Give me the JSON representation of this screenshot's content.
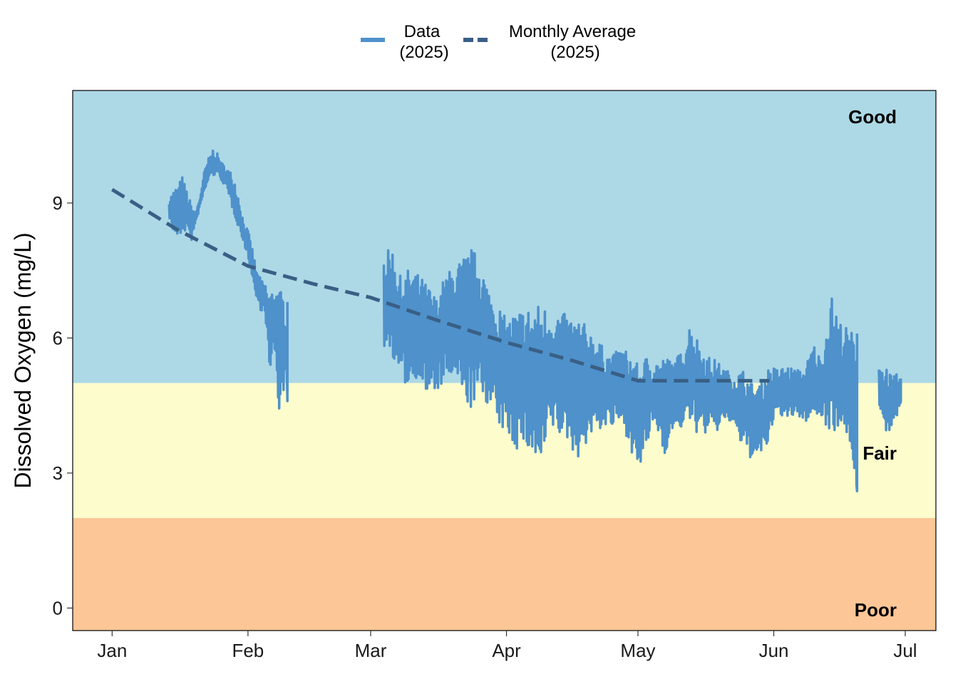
{
  "chart_data": {
    "type": "line",
    "ylabel": "Dissolved Oxygen (mg/L)",
    "xlabel": "",
    "ylim": [
      -0.5,
      11.5
    ],
    "xlim": [
      "2024-12-23",
      "2025-07-08"
    ],
    "y_ticks": [
      0,
      3,
      6,
      9
    ],
    "x_ticks": [
      {
        "date": "2025-01-01",
        "label": "Jan"
      },
      {
        "date": "2025-02-01",
        "label": "Feb"
      },
      {
        "date": "2025-03-01",
        "label": "Mar"
      },
      {
        "date": "2025-04-01",
        "label": "Apr"
      },
      {
        "date": "2025-05-01",
        "label": "May"
      },
      {
        "date": "2025-06-01",
        "label": "Jun"
      },
      {
        "date": "2025-07-01",
        "label": "Jul"
      }
    ],
    "grid": false,
    "legend_position": "top",
    "zones": [
      {
        "label": "Good",
        "from": 5,
        "to": 11.5,
        "color": "#add8e6"
      },
      {
        "label": "Fair",
        "from": 2,
        "to": 5,
        "color": "#fdfccc"
      },
      {
        "label": "Poor",
        "from": -0.5,
        "to": 2,
        "color": "#fcc697"
      }
    ],
    "series": [
      {
        "name": "Data\n(2025)",
        "legend_lines": [
          "Data",
          "(2025)"
        ],
        "color": "#4e91cb",
        "style": "solid",
        "segments": [
          {
            "x": [
              "2025-01-14",
              "2025-01-15",
              "2025-01-16",
              "2025-01-17",
              "2025-01-18",
              "2025-01-19",
              "2025-01-20",
              "2025-01-21",
              "2025-01-22",
              "2025-01-23",
              "2025-01-24",
              "2025-01-25",
              "2025-01-26",
              "2025-01-27",
              "2025-01-28",
              "2025-01-29",
              "2025-01-30",
              "2025-01-31",
              "2025-02-01",
              "2025-02-02",
              "2025-02-03",
              "2025-02-04",
              "2025-02-05",
              "2025-02-06",
              "2025-02-07",
              "2025-02-08",
              "2025-02-09",
              "2025-02-10"
            ],
            "low": [
              8.7,
              8.3,
              8.2,
              8.3,
              8.4,
              8.1,
              8.5,
              8.9,
              9.2,
              9.5,
              9.6,
              9.6,
              9.5,
              9.3,
              9.0,
              8.7,
              8.4,
              8.1,
              7.8,
              7.3,
              6.8,
              6.6,
              6.5,
              5.0,
              5.8,
              4.3,
              4.8,
              4.6
            ],
            "high": [
              9.1,
              9.3,
              9.4,
              9.6,
              9.3,
              9.0,
              8.8,
              9.1,
              9.7,
              10.0,
              10.2,
              10.1,
              9.9,
              9.8,
              9.7,
              9.5,
              9.1,
              8.6,
              8.4,
              8.0,
              7.5,
              7.3,
              7.2,
              7.0,
              7.2,
              7.1,
              7.0,
              6.8
            ]
          },
          {
            "x": [
              "2025-03-04",
              "2025-03-06",
              "2025-03-08",
              "2025-03-10",
              "2025-03-12",
              "2025-03-14",
              "2025-03-16",
              "2025-03-18",
              "2025-03-20",
              "2025-03-22",
              "2025-03-24",
              "2025-03-26",
              "2025-03-28",
              "2025-03-30",
              "2025-04-01",
              "2025-04-03",
              "2025-04-05",
              "2025-04-07",
              "2025-04-09",
              "2025-04-11",
              "2025-04-13",
              "2025-04-15",
              "2025-04-17",
              "2025-04-19",
              "2025-04-21",
              "2025-04-23",
              "2025-04-25",
              "2025-04-27",
              "2025-04-29",
              "2025-05-01",
              "2025-05-03",
              "2025-05-05",
              "2025-05-07",
              "2025-05-09",
              "2025-05-11",
              "2025-05-13",
              "2025-05-15",
              "2025-05-17",
              "2025-05-19",
              "2025-05-21",
              "2025-05-23",
              "2025-05-25",
              "2025-05-27",
              "2025-05-29",
              "2025-05-31",
              "2025-06-02",
              "2025-06-04",
              "2025-06-06",
              "2025-06-08",
              "2025-06-10",
              "2025-06-12",
              "2025-06-14",
              "2025-06-16",
              "2025-06-18",
              "2025-06-20"
            ],
            "low": [
              5.8,
              5.6,
              5.0,
              4.9,
              5.2,
              4.6,
              4.8,
              5.0,
              5.1,
              4.6,
              4.4,
              4.7,
              4.5,
              4.0,
              3.9,
              3.5,
              3.6,
              3.3,
              3.0,
              4.0,
              3.8,
              3.7,
              3.3,
              3.6,
              3.9,
              4.0,
              4.0,
              4.1,
              3.7,
              2.9,
              3.6,
              4.1,
              3.4,
              3.9,
              4.0,
              4.1,
              3.8,
              3.9,
              3.9,
              4.2,
              4.0,
              3.5,
              3.3,
              3.3,
              3.7,
              4.4,
              4.1,
              4.3,
              4.1,
              4.3,
              4.2,
              3.9,
              4.0,
              3.8,
              2.6
            ],
            "high": [
              7.9,
              8.0,
              7.3,
              7.6,
              7.4,
              7.2,
              6.9,
              7.4,
              7.6,
              7.8,
              8.0,
              7.8,
              7.1,
              6.8,
              6.4,
              6.6,
              6.7,
              6.7,
              6.8,
              6.6,
              6.6,
              6.5,
              6.5,
              6.3,
              6.1,
              5.8,
              5.6,
              5.8,
              5.7,
              5.4,
              5.6,
              5.5,
              5.6,
              5.5,
              5.7,
              6.4,
              5.9,
              5.6,
              5.5,
              5.3,
              5.2,
              5.3,
              5.0,
              5.0,
              5.4,
              5.3,
              5.4,
              5.3,
              5.3,
              5.9,
              5.5,
              7.0,
              6.4,
              6.2,
              6.1
            ]
          },
          {
            "x": [
              "2025-06-25",
              "2025-06-26",
              "2025-06-27",
              "2025-06-28",
              "2025-06-29",
              "2025-06-30"
            ],
            "low": [
              4.5,
              3.8,
              3.8,
              4.1,
              4.0,
              4.6
            ],
            "high": [
              5.6,
              5.3,
              5.4,
              5.1,
              5.2,
              5.1
            ]
          }
        ]
      },
      {
        "name": "Monthly Average\n(2025)",
        "legend_lines": [
          "Monthly Average",
          "(2025)"
        ],
        "color": "#3a5f85",
        "style": "dashed",
        "x": [
          "2025-01-01",
          "2025-01-16",
          "2025-02-01",
          "2025-02-16",
          "2025-03-01",
          "2025-03-16",
          "2025-04-01",
          "2025-04-16",
          "2025-05-01",
          "2025-05-16",
          "2025-05-31"
        ],
        "y": [
          9.3,
          8.4,
          7.6,
          7.2,
          6.9,
          6.4,
          5.9,
          5.5,
          5.05,
          5.05,
          5.05
        ]
      }
    ]
  }
}
